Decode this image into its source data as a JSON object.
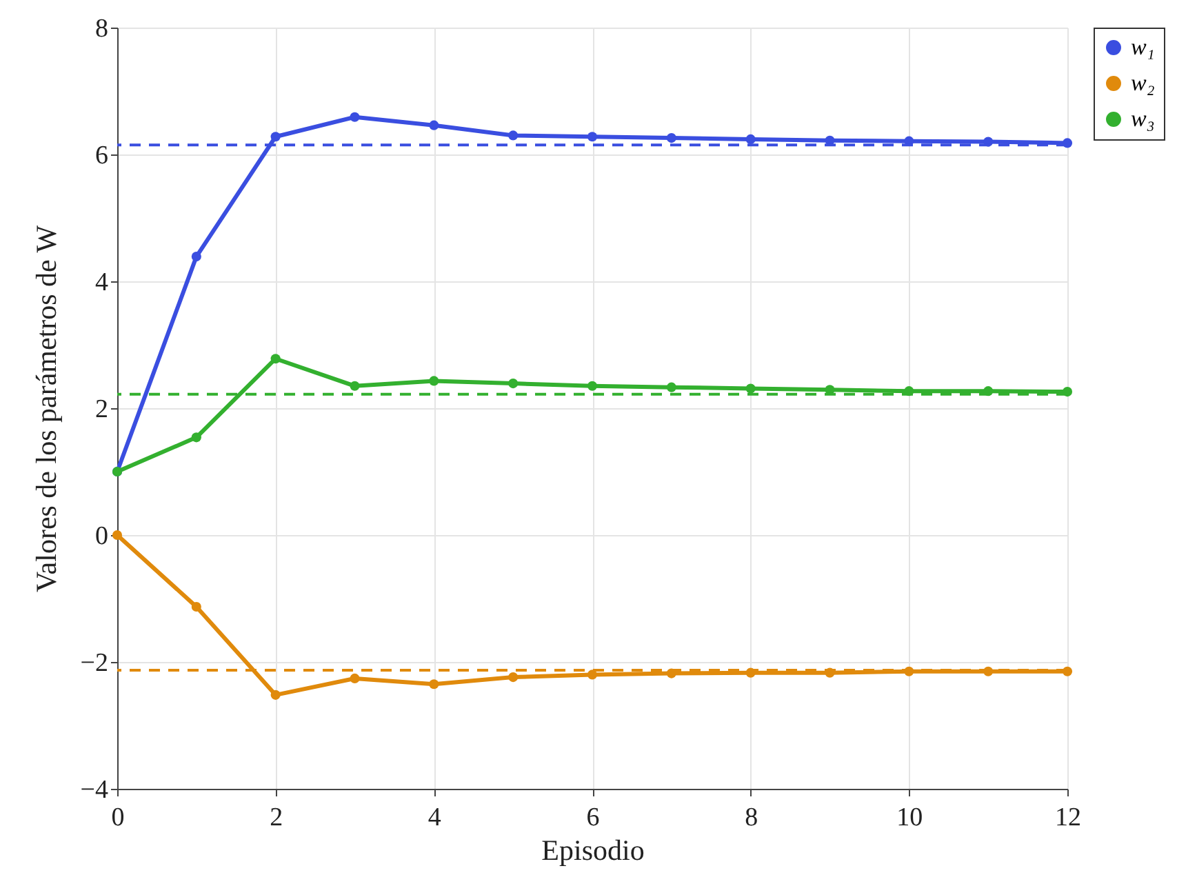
{
  "chart_data": {
    "type": "line",
    "xlabel": "Episodio",
    "ylabel": "Valores de los parámetros de W",
    "x": [
      0,
      1,
      2,
      3,
      4,
      5,
      6,
      7,
      8,
      9,
      10,
      11,
      12
    ],
    "series": [
      {
        "name": "w₁",
        "color": "#3a4ee0",
        "values": [
          1.0,
          4.39,
          6.28,
          6.59,
          6.46,
          6.3,
          6.28,
          6.26,
          6.24,
          6.22,
          6.21,
          6.2,
          6.18
        ]
      },
      {
        "name": "w₂",
        "color": "#e08a0c",
        "values": [
          0.0,
          -1.13,
          -2.52,
          -2.26,
          -2.35,
          -2.24,
          -2.2,
          -2.18,
          -2.17,
          -2.17,
          -2.15,
          -2.15,
          -2.15
        ]
      },
      {
        "name": "w₃",
        "color": "#33b02f",
        "values": [
          1.0,
          1.54,
          2.78,
          2.35,
          2.43,
          2.39,
          2.35,
          2.33,
          2.31,
          2.29,
          2.27,
          2.27,
          2.26
        ]
      }
    ],
    "ref_lines": [
      {
        "axis": "y",
        "value": 6.15,
        "color": "#3a4ee0",
        "line_style": "dashed"
      },
      {
        "axis": "y",
        "value": -2.13,
        "color": "#e08a0c",
        "line_style": "dashed"
      },
      {
        "axis": "y",
        "value": 2.22,
        "color": "#33b02f",
        "line_style": "dashed"
      }
    ],
    "xlim": [
      0,
      12
    ],
    "xticks": [
      0,
      2,
      4,
      6,
      8,
      10,
      12
    ],
    "ylim": [
      -4,
      8
    ],
    "yticks": [
      -4,
      -2,
      0,
      2,
      4,
      6,
      8
    ],
    "grid": true,
    "legend": "top right",
    "marker": "circle",
    "line_style": "solid"
  }
}
